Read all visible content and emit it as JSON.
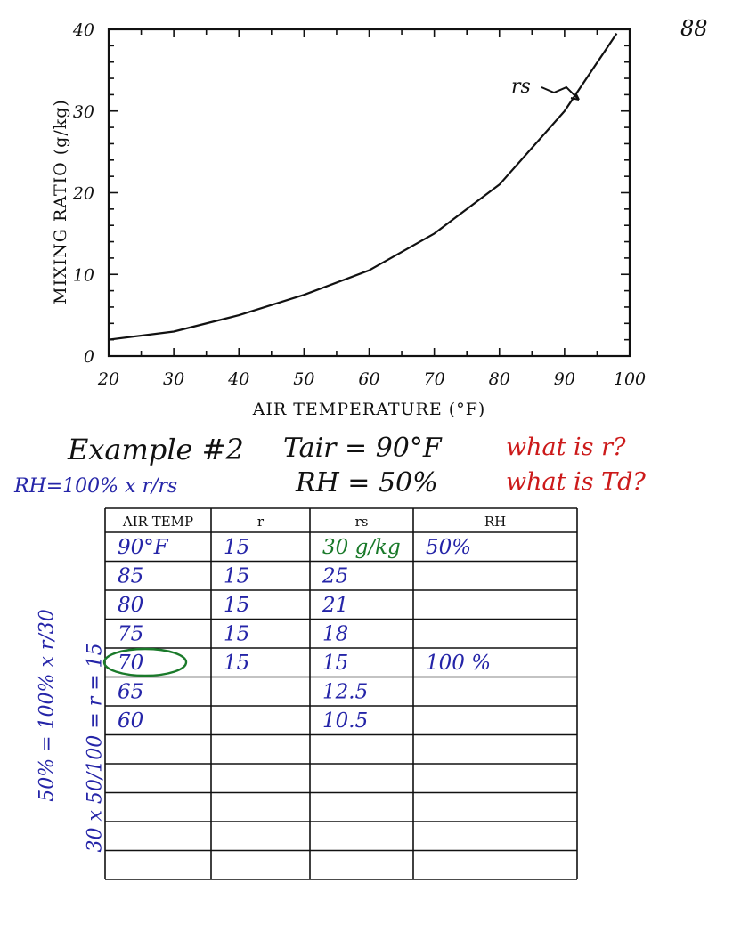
{
  "page_number": "88",
  "chart_data": {
    "type": "line",
    "title": "",
    "xlabel": "AIR TEMPERATURE (°F)",
    "ylabel": "MIXING RATIO (g/kg)",
    "xlim": [
      20,
      100
    ],
    "ylim": [
      0,
      40
    ],
    "x_ticks": [
      "20",
      "30",
      "40",
      "50",
      "60",
      "70",
      "80",
      "90",
      "100"
    ],
    "y_ticks": [
      "0",
      "10",
      "20",
      "30",
      "40"
    ],
    "grid": false,
    "series": [
      {
        "name": "rs",
        "x": [
          20,
          30,
          40,
          50,
          60,
          70,
          80,
          90,
          98
        ],
        "y": [
          2.0,
          3.0,
          5.0,
          7.5,
          10.5,
          15,
          21,
          30,
          39.5
        ]
      }
    ]
  },
  "example": {
    "title": "Example #2",
    "tair": "Tair = 90°F",
    "rh": "RH  =  50%",
    "question1": "what is r?",
    "question2": "what is Td?",
    "formula": "RH=100% x r/rs"
  },
  "table": {
    "headers": [
      "AIR TEMP",
      "r",
      "rs",
      "RH"
    ],
    "rows": [
      [
        "90°F",
        "15",
        "30 g/kg",
        "50%"
      ],
      [
        "85",
        "15",
        "25",
        ""
      ],
      [
        "80",
        "15",
        "21",
        ""
      ],
      [
        "75",
        "15",
        "18",
        ""
      ],
      [
        "70",
        "15",
        "15",
        "100 %"
      ],
      [
        "65",
        "",
        "12.5",
        ""
      ],
      [
        "60",
        "",
        "10.5",
        ""
      ],
      [
        "",
        "",
        "",
        ""
      ],
      [
        "",
        "",
        "",
        ""
      ],
      [
        "",
        "",
        "",
        ""
      ],
      [
        "",
        "",
        "",
        ""
      ],
      [
        "",
        "",
        "",
        ""
      ]
    ],
    "circled_value": "70"
  },
  "side_notes": {
    "line1": "50% = 100% x r/30",
    "line2": "30 x 50/100 = r = 15"
  },
  "colors": {
    "ink_black": "#111111",
    "ink_blue": "#2525a8",
    "ink_red": "#cc1a1a",
    "ink_green": "#1a7a2a"
  }
}
